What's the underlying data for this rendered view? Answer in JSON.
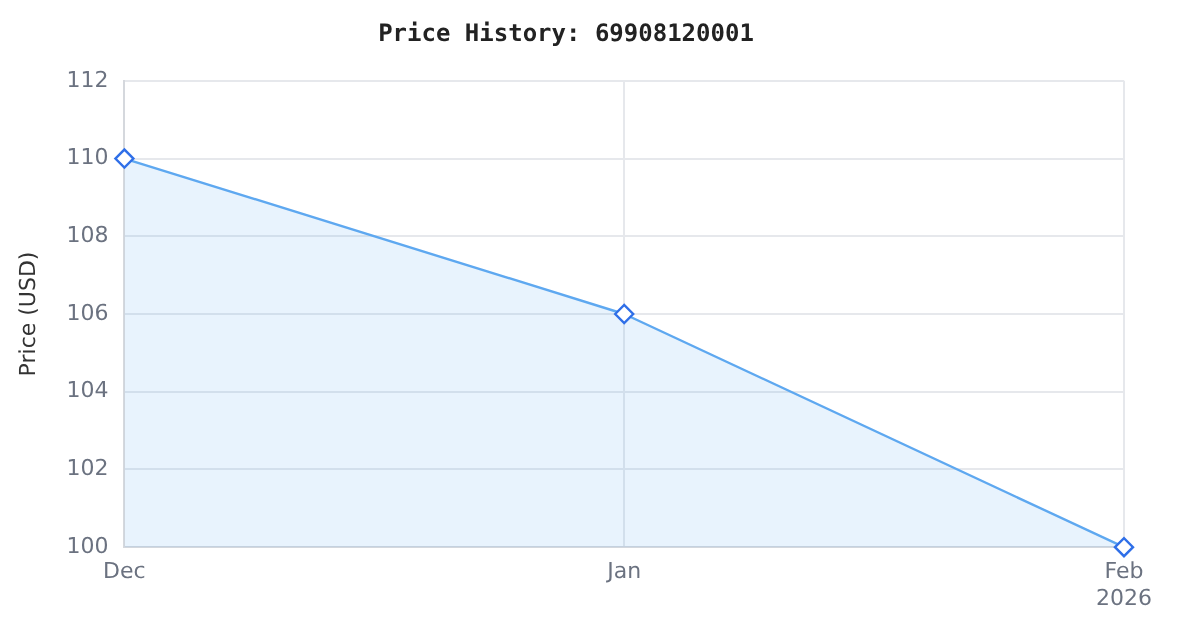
{
  "chart_data": {
    "type": "area",
    "title": "Price History: 69908120001",
    "ylabel": "Price (USD)",
    "x": [
      "2025-12",
      "2026-01",
      "2026-02"
    ],
    "series": [
      {
        "color": "#5ea8f0",
        "values": [
          110,
          106,
          100
        ]
      }
    ],
    "xlim": [
      "2025-12",
      "2026-02"
    ],
    "xticks": [
      {
        "value": "2025-12",
        "label": "Dec"
      },
      {
        "value": "2026-01",
        "label": "Jan"
      },
      {
        "value": "2026-02",
        "label": "Feb\n2026"
      }
    ],
    "ylim": [
      100,
      112
    ],
    "yticks": [
      100,
      102,
      104,
      106,
      108,
      110,
      112
    ],
    "grid": true,
    "marker": "diamond",
    "line_style": "solid"
  }
}
